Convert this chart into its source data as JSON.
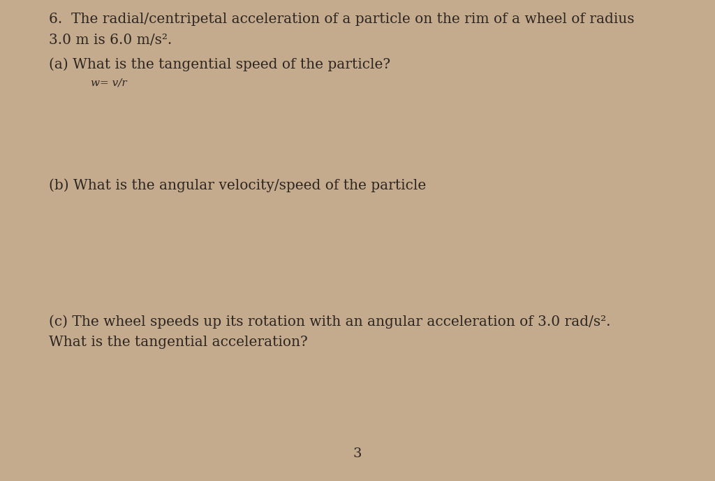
{
  "background_color": "#c4ab8e",
  "text_color": "#2d2520",
  "page_number": "3",
  "line1": "6.  The radial/centripetal acceleration of a particle on the rim of a wheel of radius",
  "line2": "3.0 m is 6.0 m/s².",
  "line3": "(a) What is the tangential speed of the particle?",
  "handwritten": "w= v/r",
  "line4": "(b) What is the angular velocity/speed of the particle",
  "line5": "(c) The wheel speeds up its rotation with an angular acceleration of 3.0 rad/s².",
  "line6": "What is the tangential acceleration?",
  "font_size_main": 14.5,
  "font_size_handwritten": 11,
  "font_size_page": 14
}
